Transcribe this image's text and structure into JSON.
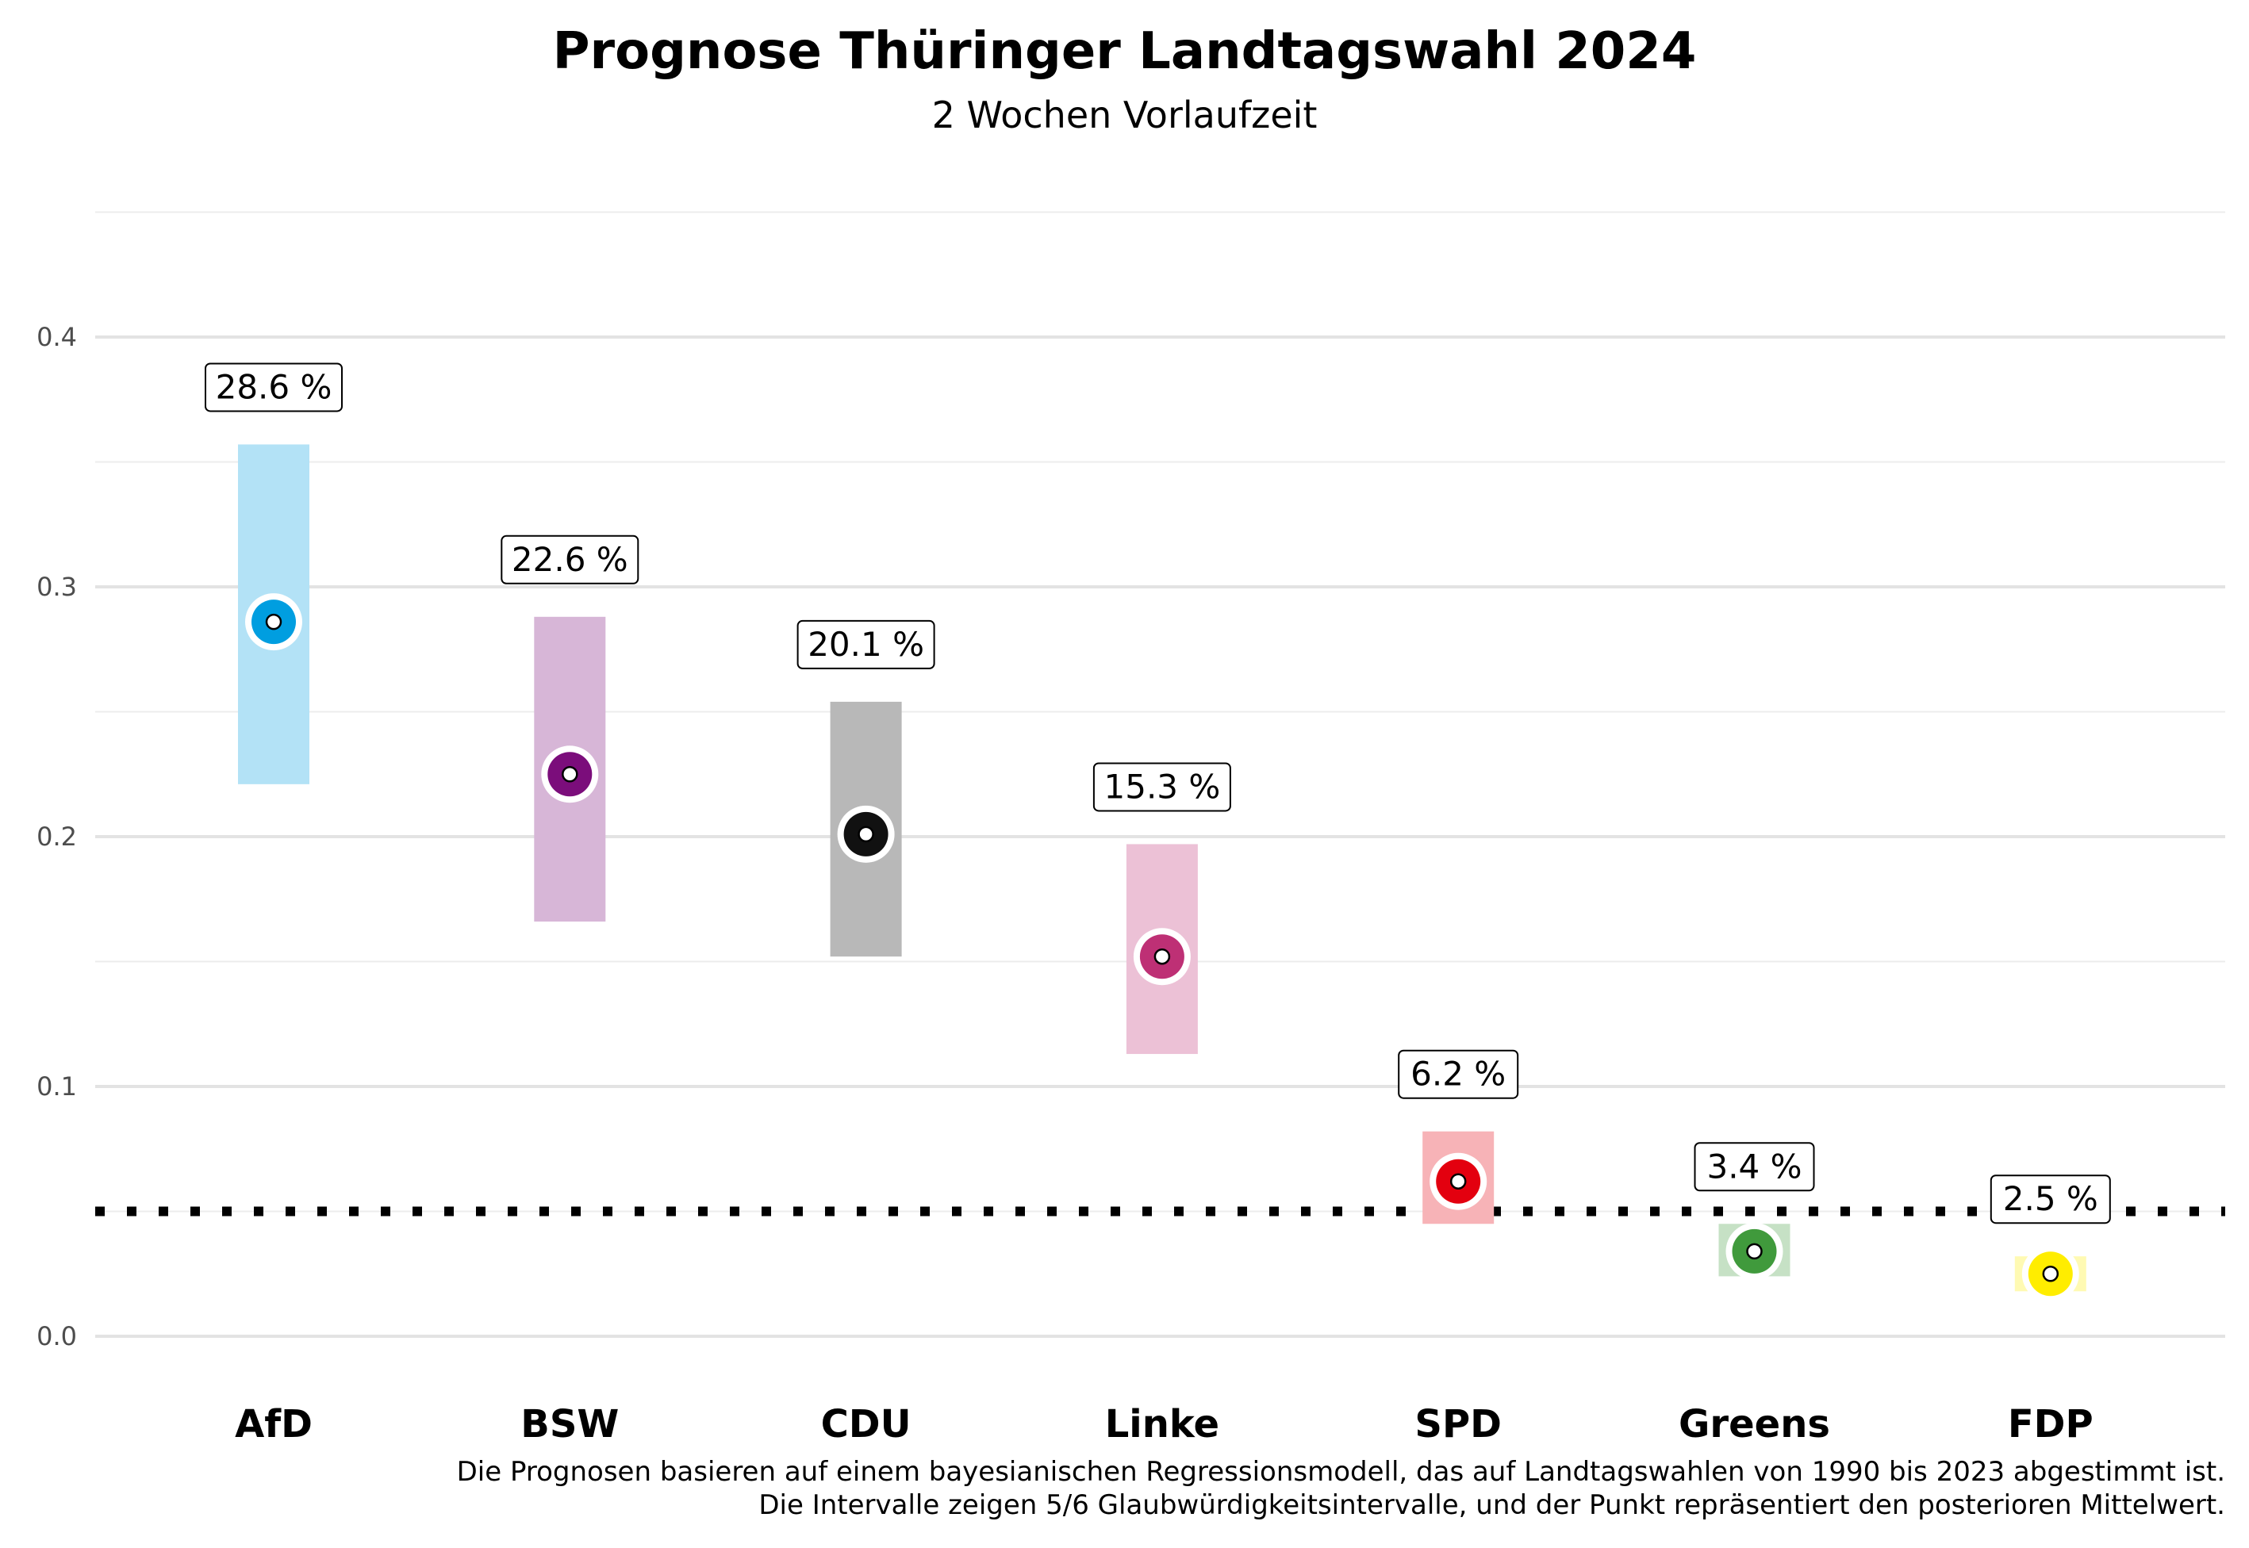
{
  "chart_data": {
    "type": "interval",
    "title": "Prognose Thüringer Landtagswahl 2024",
    "subtitle": "2 Wochen Vorlaufzeit",
    "xlabel": "",
    "ylabel": "",
    "ylim": [
      -0.03,
      0.45
    ],
    "yticks": [
      0.0,
      0.1,
      0.2,
      0.3,
      0.4
    ],
    "ytick_labels": [
      "0.0",
      "0.1",
      "0.2",
      "0.3",
      "0.4"
    ],
    "grid": true,
    "threshold": 0.05,
    "categories": [
      "AfD",
      "BSW",
      "CDU",
      "Linke",
      "SPD",
      "Greens",
      "FDP"
    ],
    "mean": [
      0.286,
      0.225,
      0.201,
      0.152,
      0.062,
      0.034,
      0.025
    ],
    "lower": [
      0.221,
      0.166,
      0.152,
      0.113,
      0.045,
      0.024,
      0.018
    ],
    "upper": [
      0.357,
      0.288,
      0.254,
      0.197,
      0.082,
      0.045,
      0.032
    ],
    "labels": [
      "28.6 %",
      "22.6 %",
      "20.1 %",
      "15.3 %",
      "6.2 %",
      "3.4 %",
      "2.5 %"
    ],
    "colors": [
      "#009ee0",
      "#7b0d7b",
      "#111111",
      "#be3075",
      "#e3000f",
      "#409a3c",
      "#ffed00"
    ],
    "caption": [
      "Die Prognosen basieren auf einem bayesianischen Regressionsmodell, das auf Landtagswahlen von 1990 bis 2023 abgestimmt ist.",
      "Die Intervalle zeigen 5/6 Glaubwürdigkeitsintervalle, und der Punkt repräsentiert den posterioren Mittelwert."
    ]
  }
}
